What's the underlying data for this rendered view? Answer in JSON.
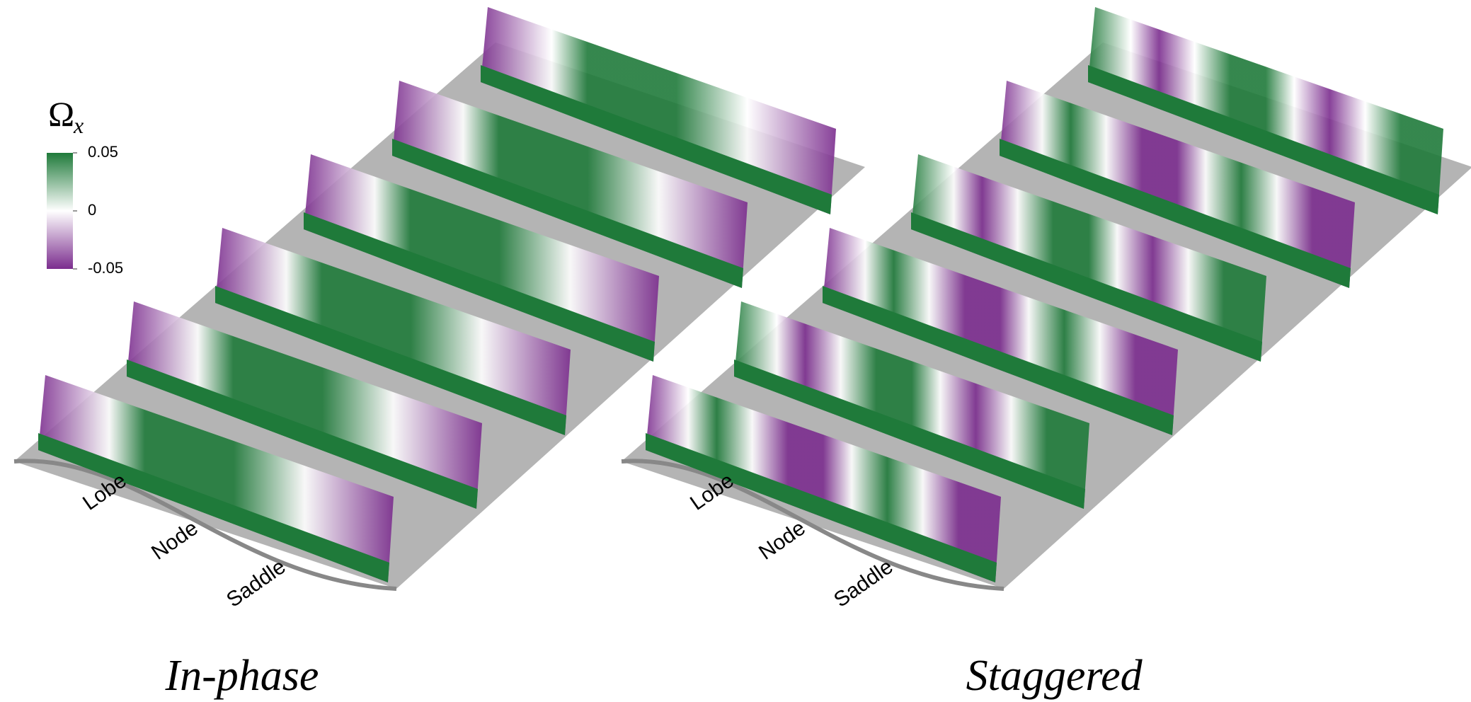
{
  "colorbar": {
    "symbol": "Ω",
    "subscript": "x",
    "range": [
      -0.05,
      0.05
    ],
    "ticks": [
      0.05,
      0,
      -0.05
    ],
    "colors": [
      "#7b2d8e",
      "#ffffff",
      "#1f7a3a"
    ]
  },
  "panels": [
    {
      "title": "In-phase",
      "labels": [
        "Lobe",
        "Node",
        "Saddle"
      ]
    },
    {
      "title": "Staggered",
      "labels": [
        "Lobe",
        "Node",
        "Saddle"
      ]
    }
  ]
}
